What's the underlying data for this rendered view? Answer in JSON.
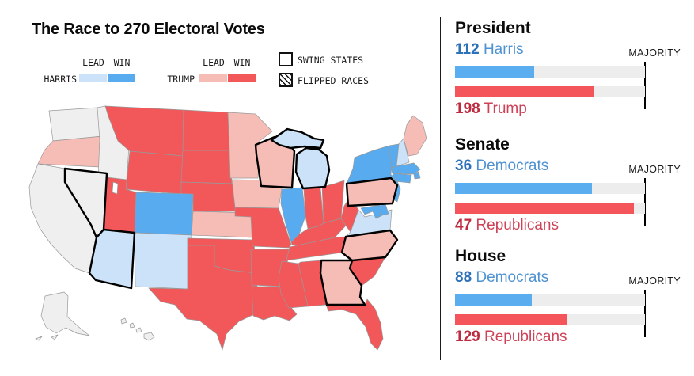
{
  "title": "The Race to 270 Electoral Votes",
  "legend": {
    "harris_label": "HARRIS",
    "trump_label": "TRUMP",
    "lead_label": "LEAD",
    "win_label": "WIN",
    "swing_label": "SWING STATES",
    "flipped_label": "FLIPPED RACES"
  },
  "chart_data": [
    {
      "type": "bar",
      "title": "President",
      "majority_label": "MAJORITY",
      "majority": 270,
      "categories": [
        "Harris",
        "Trump"
      ],
      "values": [
        112,
        198
      ],
      "bar_colors": [
        "#5aadef",
        "#f4555a"
      ],
      "track_color": "#ededed"
    },
    {
      "type": "bar",
      "title": "Senate",
      "majority_label": "MAJORITY",
      "majority": 50,
      "categories": [
        "Democrats",
        "Republicans"
      ],
      "values": [
        36,
        47
      ],
      "bar_colors": [
        "#5aadef",
        "#f4555a"
      ],
      "track_color": "#ededed"
    },
    {
      "type": "bar",
      "title": "House",
      "majority_label": "MAJORITY",
      "majority": 218,
      "categories": [
        "Democrats",
        "Republicans"
      ],
      "values": [
        88,
        129
      ],
      "bar_colors": [
        "#5aadef",
        "#f4555a"
      ],
      "track_color": "#ededed"
    },
    {
      "type": "choropleth",
      "status_colors": {
        "harris_lead": "#cbe2f8",
        "harris_win": "#58abee",
        "trump_lead": "#f6bdb6",
        "trump_win": "#f2575a",
        "uncalled": "#efefef"
      },
      "swing_states": [
        "NV",
        "AZ",
        "WI",
        "MI",
        "PA",
        "NC",
        "GA"
      ],
      "state_status": {
        "uncalled": [
          "WA",
          "ID",
          "CA",
          "NV",
          "AK",
          "HI"
        ],
        "trump_lead": [
          "OR",
          "MN",
          "IA",
          "KS",
          "ME",
          "WI",
          "PA",
          "NC",
          "GA"
        ],
        "trump_win": [
          "MT",
          "WY",
          "UT",
          "ND",
          "SD",
          "NE",
          "MO",
          "OK",
          "TX",
          "AR",
          "LA",
          "MS",
          "AL",
          "TN",
          "KY",
          "IN",
          "OH",
          "WV",
          "SC",
          "FL"
        ],
        "harris_win": [
          "CO",
          "IL",
          "NY",
          "VT",
          "MA",
          "RI",
          "CT",
          "NJ",
          "MD",
          "DE"
        ],
        "harris_lead": [
          "AZ",
          "NM",
          "MI",
          "VA",
          "NH"
        ]
      }
    }
  ]
}
